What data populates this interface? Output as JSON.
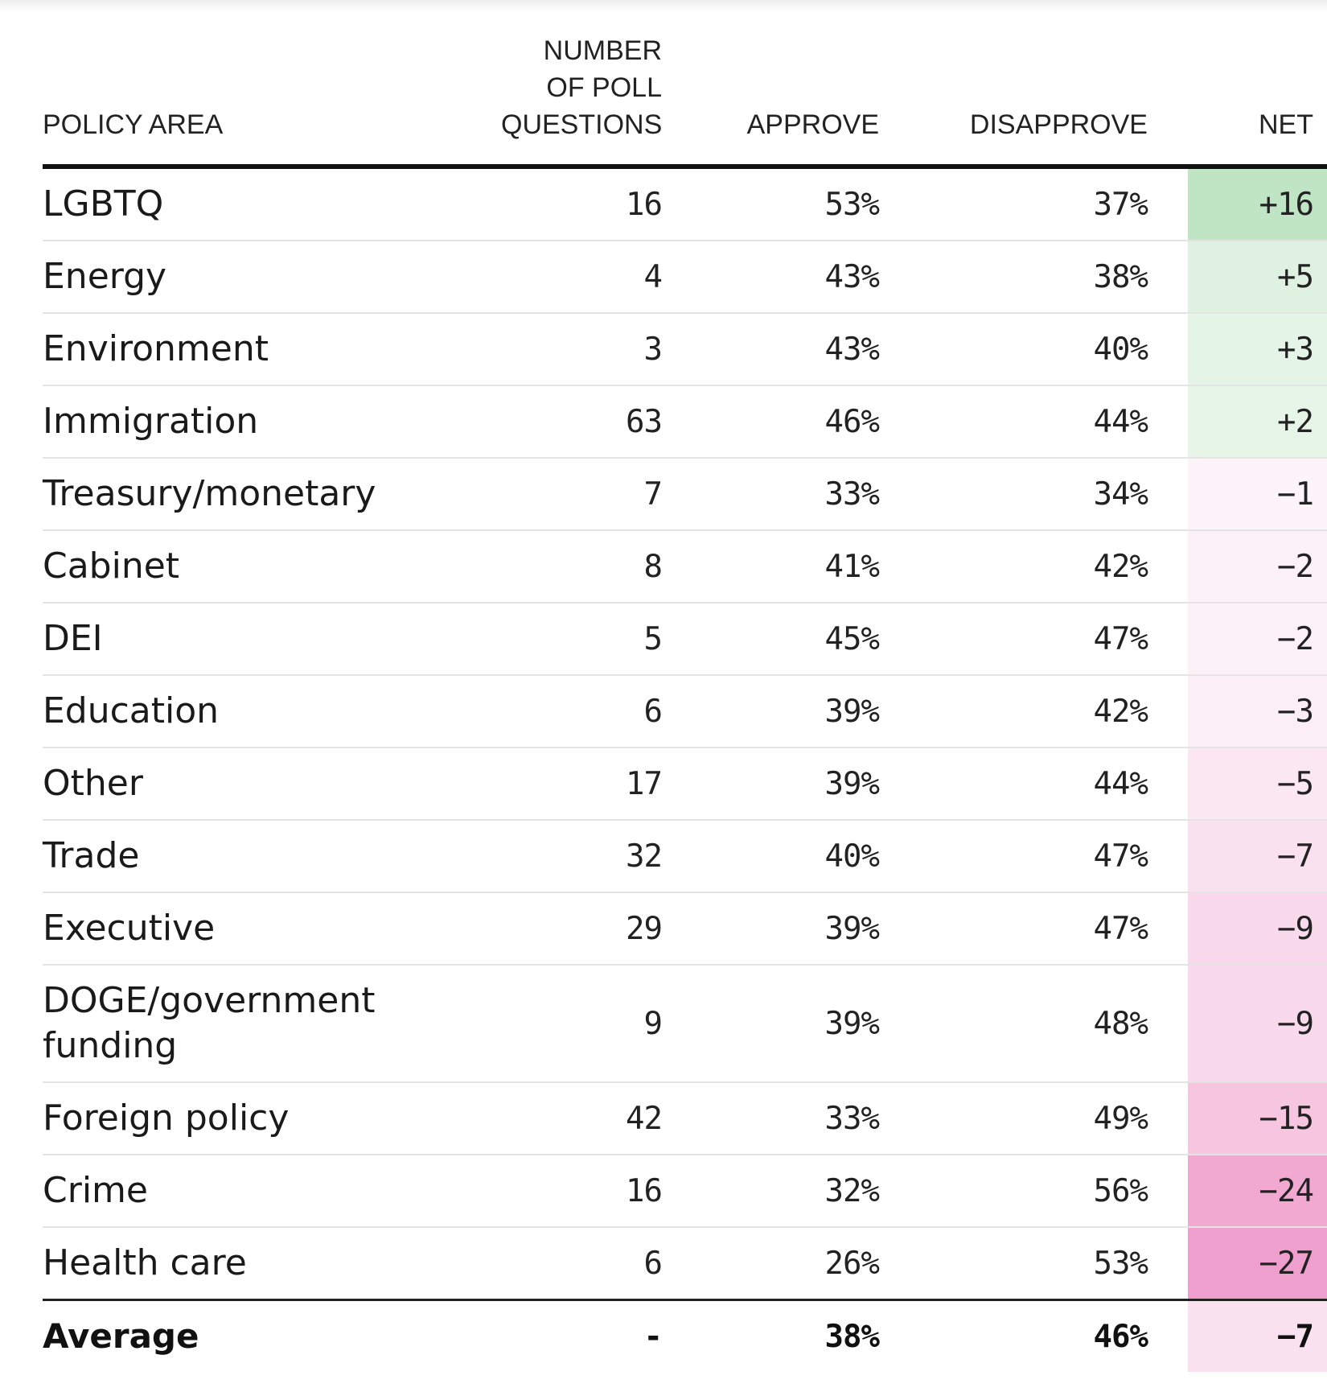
{
  "chart_data": {
    "type": "table",
    "columns": [
      "POLICY AREA",
      "NUMBER OF POLL QUESTIONS",
      "APPROVE",
      "DISAPPROVE",
      "NET"
    ],
    "rows": [
      {
        "area": "LGBTQ",
        "questions": "16",
        "approve": "53%",
        "disapprove": "37%",
        "net": "+16",
        "net_value": 16
      },
      {
        "area": "Energy",
        "questions": "4",
        "approve": "43%",
        "disapprove": "38%",
        "net": "+5",
        "net_value": 5
      },
      {
        "area": "Environment",
        "questions": "3",
        "approve": "43%",
        "disapprove": "40%",
        "net": "+3",
        "net_value": 3
      },
      {
        "area": "Immigration",
        "questions": "63",
        "approve": "46%",
        "disapprove": "44%",
        "net": "+2",
        "net_value": 2
      },
      {
        "area": "Treasury/monetary",
        "questions": "7",
        "approve": "33%",
        "disapprove": "34%",
        "net": "−1",
        "net_value": -1
      },
      {
        "area": "Cabinet",
        "questions": "8",
        "approve": "41%",
        "disapprove": "42%",
        "net": "−2",
        "net_value": -2
      },
      {
        "area": "DEI",
        "questions": "5",
        "approve": "45%",
        "disapprove": "47%",
        "net": "−2",
        "net_value": -2
      },
      {
        "area": "Education",
        "questions": "6",
        "approve": "39%",
        "disapprove": "42%",
        "net": "−3",
        "net_value": -3
      },
      {
        "area": "Other",
        "questions": "17",
        "approve": "39%",
        "disapprove": "44%",
        "net": "−5",
        "net_value": -5
      },
      {
        "area": "Trade",
        "questions": "32",
        "approve": "40%",
        "disapprove": "47%",
        "net": "−7",
        "net_value": -7
      },
      {
        "area": "Executive",
        "questions": "29",
        "approve": "39%",
        "disapprove": "47%",
        "net": "−9",
        "net_value": -9
      },
      {
        "area": "DOGE/government funding",
        "questions": "9",
        "approve": "39%",
        "disapprove": "48%",
        "net": "−9",
        "net_value": -9
      },
      {
        "area": "Foreign policy",
        "questions": "42",
        "approve": "33%",
        "disapprove": "49%",
        "net": "−15",
        "net_value": -15
      },
      {
        "area": "Crime",
        "questions": "16",
        "approve": "32%",
        "disapprove": "56%",
        "net": "−24",
        "net_value": -24
      },
      {
        "area": "Health care",
        "questions": "6",
        "approve": "26%",
        "disapprove": "53%",
        "net": "−27",
        "net_value": -27
      }
    ],
    "average": {
      "area": "Average",
      "questions": "-",
      "approve": "38%",
      "disapprove": "46%",
      "net": "−7",
      "net_value": -7
    },
    "colors": {
      "positive": "#bfe5c4",
      "negative": "#ef9fcd"
    }
  }
}
